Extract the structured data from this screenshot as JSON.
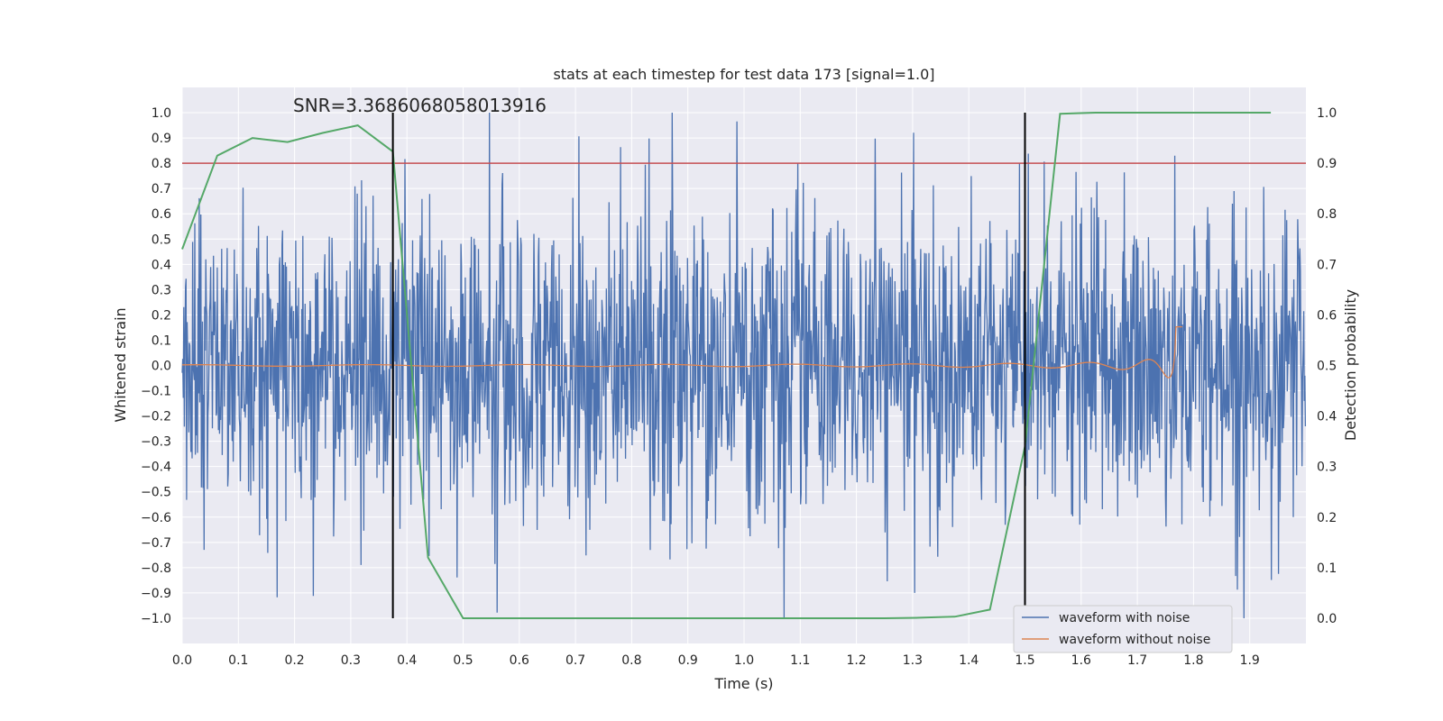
{
  "chart_data": {
    "type": "line",
    "title": "stats at each timestep for test data 173 [signal=1.0]",
    "xlabel": "Time (s)",
    "ylabel": "Whitened strain",
    "y2label": "Detection probability",
    "xlim": [
      0.0,
      2.0
    ],
    "ylim": [
      -1.1,
      1.1
    ],
    "y2lim": [
      -0.05,
      1.05
    ],
    "xticks": [
      "0.0",
      "0.1",
      "0.2",
      "0.3",
      "0.4",
      "0.5",
      "0.6",
      "0.7",
      "0.8",
      "0.9",
      "1.0",
      "1.1",
      "1.2",
      "1.3",
      "1.4",
      "1.5",
      "1.6",
      "1.7",
      "1.8",
      "1.9"
    ],
    "yticks": [
      "1.0",
      "0.9",
      "0.8",
      "0.7",
      "0.6",
      "0.5",
      "0.4",
      "0.3",
      "0.2",
      "0.1",
      "0.0",
      "−0.1",
      "−0.2",
      "−0.3",
      "−0.4",
      "−0.5",
      "−0.6",
      "−0.7",
      "−0.8",
      "−0.9",
      "−1.0"
    ],
    "y2ticks": [
      "1.0",
      "0.9",
      "0.8",
      "0.7",
      "0.6",
      "0.5",
      "0.4",
      "0.3",
      "0.2",
      "0.1",
      "0.0"
    ],
    "grid": true,
    "legend_position": "bottom-right",
    "annotation": "SNR=3.3686068058013916",
    "threshold": {
      "axis": "right",
      "value": 0.9,
      "color": "#c44e52"
    },
    "vlines": [
      {
        "x": 0.375,
        "y_range": [
          -1.0,
          1.0
        ]
      },
      {
        "x": 1.5,
        "y_range": [
          -1.0,
          1.0
        ]
      }
    ],
    "series": [
      {
        "name": "waveform with noise",
        "color": "#4c72b0",
        "axis": "left",
        "kind": "noise",
        "x_range": [
          0.0,
          2.0
        ],
        "approx_std": 0.3,
        "approx_range": [
          -1.0,
          1.0
        ]
      },
      {
        "name": "waveform without noise",
        "color": "#dd8452",
        "axis": "left",
        "kind": "chirp",
        "x_range": [
          0.0,
          1.78
        ],
        "merger_time": 1.77,
        "peak_amplitude": 0.2
      },
      {
        "color": "#55a868",
        "axis": "right",
        "x": [
          0.0,
          0.0625,
          0.125,
          0.1875,
          0.25,
          0.3125,
          0.375,
          0.4375,
          0.5,
          0.5625,
          0.625,
          0.6875,
          0.75,
          0.8125,
          0.875,
          0.9375,
          1.0,
          1.0625,
          1.125,
          1.1875,
          1.25,
          1.3125,
          1.375,
          1.4375,
          1.5,
          1.5625,
          1.625,
          1.6875,
          1.75,
          1.8125,
          1.875,
          1.9375
        ],
        "values": [
          0.73,
          0.915,
          0.95,
          0.942,
          0.96,
          0.975,
          0.923,
          0.12,
          0.0,
          0.0,
          0.0,
          0.0,
          0.0,
          0.0,
          0.0,
          0.0,
          0.0,
          0.0,
          0.0,
          0.0,
          0.0,
          0.001,
          0.003,
          0.017,
          0.34,
          0.998,
          1.0,
          1.0,
          1.0,
          1.0,
          1.0,
          1.0
        ]
      }
    ]
  }
}
